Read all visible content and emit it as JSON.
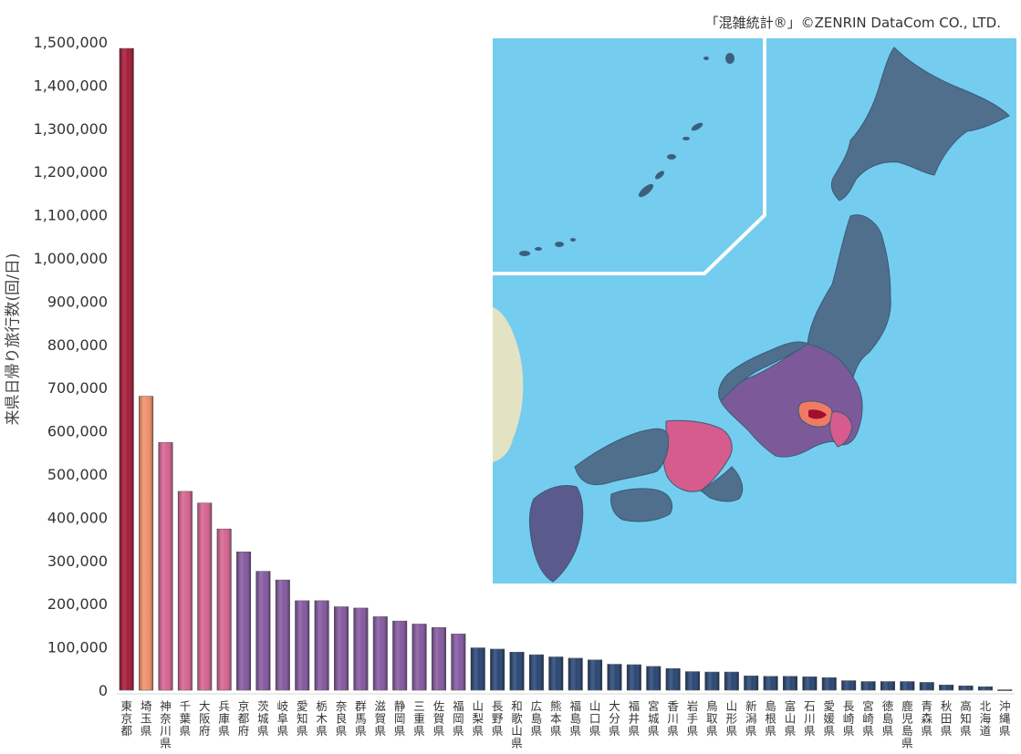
{
  "credit": "「混雑統計®」©ZENRIN DataCom CO., LTD.",
  "colors": {
    "tokyo": "#a0102e",
    "saitama": "#f08a62",
    "pinks": "#d55c8c",
    "purples": "#7f519c",
    "blues": "#1f3d6e",
    "sea": "#74cdef",
    "land_base": "#506f8c",
    "continent": "#e3e2c3"
  },
  "chart_data": {
    "type": "bar",
    "title": "",
    "xlabel": "",
    "ylabel": "来県日帰り旅行数(回/日)",
    "ylim": [
      0,
      1500000
    ],
    "yticks": [
      0,
      100000,
      200000,
      300000,
      400000,
      500000,
      600000,
      700000,
      800000,
      900000,
      1000000,
      1100000,
      1200000,
      1300000,
      1400000,
      1500000
    ],
    "ytick_labels": [
      "0",
      "100,000",
      "200,000",
      "300,000",
      "400,000",
      "500,000",
      "600,000",
      "700,000",
      "800,000",
      "900,000",
      "1,000,000",
      "1,100,000",
      "1,200,000",
      "1,300,000",
      "1,400,000",
      "1,500,000"
    ],
    "categories": [
      "東京都",
      "埼玉県",
      "神奈川県",
      "千葉県",
      "大阪府",
      "兵庫県",
      "京都府",
      "茨城県",
      "岐阜県",
      "愛知県",
      "栃木県",
      "奈良県",
      "群馬県",
      "滋賀県",
      "静岡県",
      "三重県",
      "佐賀県",
      "福岡県",
      "山梨県",
      "長野県",
      "和歌山県",
      "広島県",
      "熊本県",
      "福島県",
      "山口県",
      "大分県",
      "福井県",
      "宮城県",
      "香川県",
      "岩手県",
      "鳥取県",
      "山形県",
      "新潟県",
      "島根県",
      "富山県",
      "石川県",
      "愛媛県",
      "長崎県",
      "宮崎県",
      "徳島県",
      "鹿児島県",
      "青森県",
      "秋田県",
      "高知県",
      "北海道",
      "沖縄県"
    ],
    "values": [
      1485000,
      680000,
      573000,
      460000,
      433000,
      373000,
      320000,
      275000,
      255000,
      207000,
      207000,
      193000,
      190000,
      170000,
      160000,
      153000,
      145000,
      130000,
      98000,
      95000,
      88000,
      82000,
      77000,
      74000,
      70000,
      60000,
      59000,
      55000,
      50000,
      43000,
      42000,
      42000,
      33000,
      32000,
      32000,
      31000,
      29000,
      22000,
      20000,
      20000,
      20000,
      18000,
      12000,
      10000,
      8000,
      1000
    ],
    "grid": false,
    "legend": "none"
  }
}
